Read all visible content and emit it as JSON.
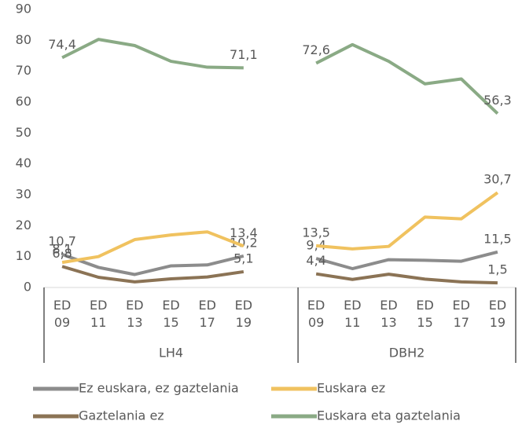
{
  "chart_data": {
    "type": "line",
    "categories": [
      "ED 09",
      "ED 11",
      "ED 13",
      "ED 15",
      "ED 17",
      "ED 19",
      null,
      "ED 09",
      "ED 11",
      "ED 13",
      "ED 15",
      "ED 17",
      "ED 19"
    ],
    "groups": [
      {
        "name": "LH4",
        "from": 0,
        "to": 6
      },
      {
        "name": "DBH2",
        "from": 7,
        "to": 12
      }
    ],
    "ylim": [
      0,
      90
    ],
    "yticks": [
      0,
      10,
      20,
      30,
      40,
      50,
      60,
      70,
      80,
      90
    ],
    "legend": "bottom",
    "series": [
      {
        "name": "Ez euskara, ez gaztelania",
        "color": "#8c8c8c",
        "values": [
          10.7,
          6.5,
          4.2,
          7,
          7.3,
          10.2,
          null,
          9.4,
          6.1,
          9,
          8.8,
          8.5,
          11.5
        ],
        "value_labels": [
          "10,7",
          null,
          null,
          null,
          null,
          "10,2",
          null,
          "9,4",
          null,
          null,
          null,
          null,
          "11,5"
        ]
      },
      {
        "name": "Euskara ez",
        "color": "#f0c25f",
        "values": [
          8.1,
          10,
          15.5,
          17,
          18,
          13.4,
          null,
          13.5,
          12.5,
          13.3,
          22.8,
          22.2,
          30.7
        ],
        "value_labels": [
          "8,1",
          null,
          null,
          null,
          null,
          "13,4",
          null,
          "13,5",
          null,
          null,
          null,
          null,
          "30,7"
        ]
      },
      {
        "name": "Gaztelania ez",
        "color": "#8b7355",
        "values": [
          6.8,
          3.3,
          1.8,
          2.8,
          3.4,
          5.1,
          null,
          4.4,
          2.6,
          4.3,
          2.7,
          1.8,
          1.5
        ],
        "value_labels": [
          "6,8",
          null,
          null,
          null,
          null,
          "5,1",
          null,
          "4,4",
          null,
          null,
          null,
          null,
          "1,5"
        ]
      },
      {
        "name": "Euskara eta gaztelania",
        "color": "#8aaa85",
        "values": [
          74.4,
          80.3,
          78.3,
          73.2,
          71.3,
          71.1,
          null,
          72.6,
          78.6,
          73.2,
          65.9,
          67.5,
          56.3
        ],
        "value_labels": [
          "74,4",
          null,
          null,
          null,
          null,
          "71,1",
          null,
          "72,6",
          null,
          null,
          null,
          null,
          "56,3"
        ]
      }
    ]
  }
}
